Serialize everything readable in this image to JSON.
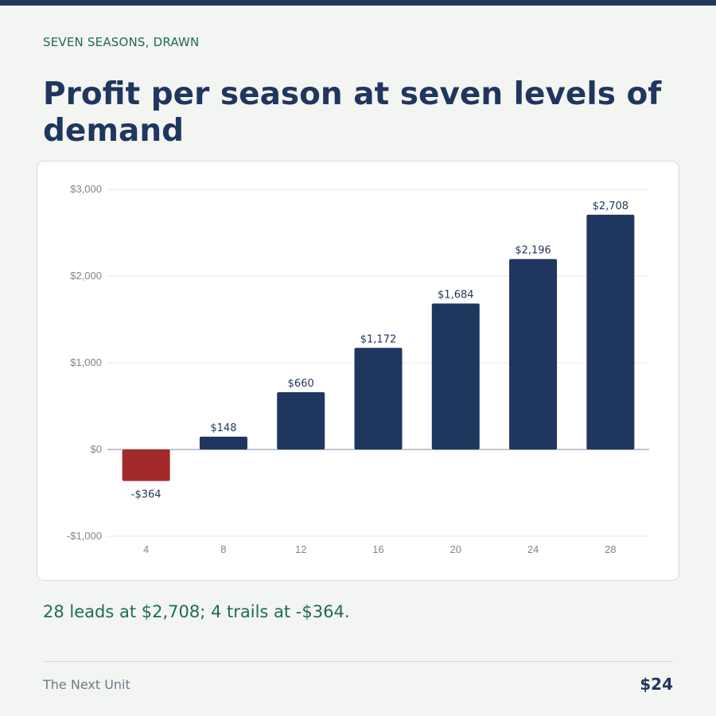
{
  "header": {
    "kicker": "SEVEN SEASONS, DRAWN",
    "title": "Profit per season at seven levels of demand"
  },
  "takeaway": "28 leads at $2,708; 4 trails at -$364.",
  "footer": {
    "left": "The Next Unit",
    "right": "$24"
  },
  "colors": {
    "positive": "#1f365f",
    "negative": "#a32a2a"
  },
  "chart_data": {
    "type": "bar",
    "categories": [
      "4",
      "8",
      "12",
      "16",
      "20",
      "24",
      "28"
    ],
    "values": [
      -364,
      148,
      660,
      1172,
      1684,
      2196,
      2708
    ],
    "value_labels": [
      "-$364",
      "$148",
      "$660",
      "$1,172",
      "$1,684",
      "$2,196",
      "$2,708"
    ],
    "ylim": [
      -1000,
      3000
    ],
    "yticks": [
      -1000,
      0,
      1000,
      2000,
      3000
    ],
    "ytick_labels": [
      "-$1,000",
      "$0",
      "$1,000",
      "$2,000",
      "$3,000"
    ],
    "grid": true
  }
}
